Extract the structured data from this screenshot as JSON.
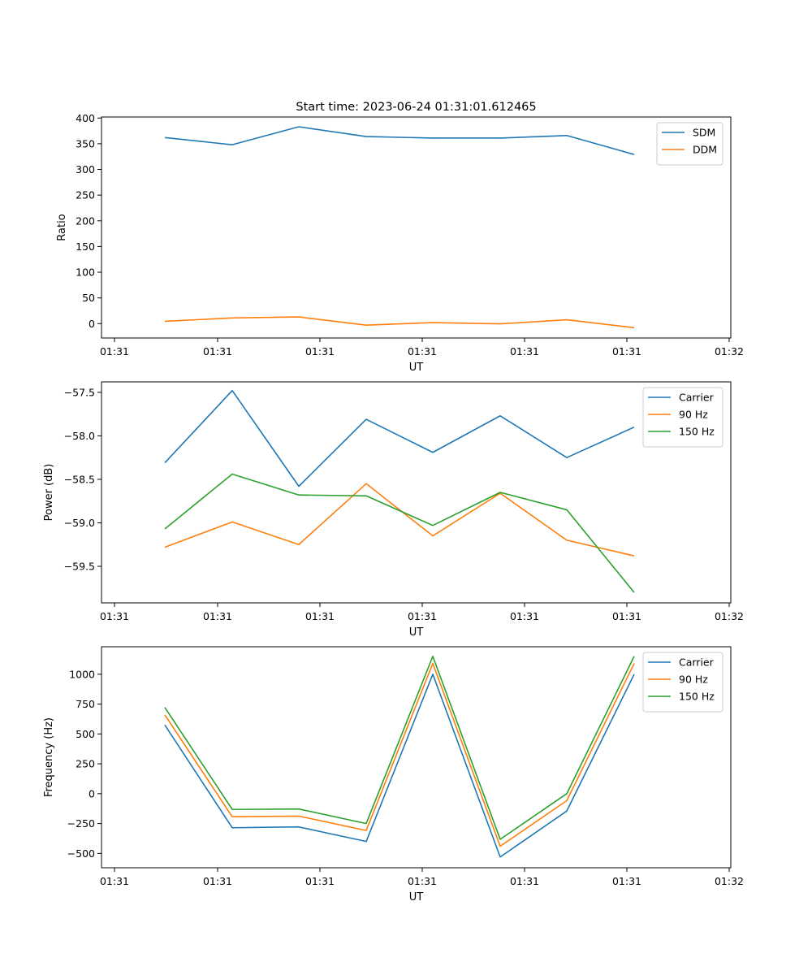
{
  "chart_data": [
    {
      "type": "line",
      "title": "Start time: 2023-06-24 01:31:01.612465",
      "xlabel": "UT",
      "ylabel": "Ratio",
      "x_tick_labels": [
        "01:31",
        "01:31",
        "01:31",
        "01:31",
        "01:31",
        "01:31",
        "01:32"
      ],
      "ylim": [
        -28,
        402
      ],
      "yticks": [
        0,
        50,
        100,
        150,
        200,
        250,
        300,
        350,
        400
      ],
      "yticks_labels": [
        "0",
        "50",
        "100",
        "150",
        "200",
        "250",
        "300",
        "350",
        "400"
      ],
      "legend_position": "upper right",
      "series": [
        {
          "name": "SDM",
          "color": "#1f77b4",
          "values": [
            362,
            348,
            383,
            364,
            361,
            361,
            366,
            329
          ]
        },
        {
          "name": "DDM",
          "color": "#ff7f0e",
          "values": [
            4.5,
            11,
            13,
            -3,
            2,
            -0.5,
            7.5,
            -8
          ]
        }
      ]
    },
    {
      "type": "line",
      "title": "",
      "xlabel": "UT",
      "ylabel": "Power (dB)",
      "x_tick_labels": [
        "01:31",
        "01:31",
        "01:31",
        "01:31",
        "01:31",
        "01:31",
        "01:32"
      ],
      "ylim": [
        -59.92,
        -57.38
      ],
      "yticks": [
        -59.5,
        -59.0,
        -58.5,
        -58.0,
        -57.5
      ],
      "yticks_labels": [
        "−59.5",
        "−59.0",
        "−58.5",
        "−58.0",
        "−57.5"
      ],
      "legend_position": "upper right",
      "series": [
        {
          "name": "Carrier",
          "color": "#1f77b4",
          "values": [
            -58.31,
            -57.48,
            -58.58,
            -57.81,
            -58.19,
            -57.77,
            -58.25,
            -57.9
          ]
        },
        {
          "name": "90 Hz",
          "color": "#ff7f0e",
          "values": [
            -59.28,
            -58.99,
            -59.25,
            -58.55,
            -59.15,
            -58.66,
            -59.2,
            -59.38
          ]
        },
        {
          "name": "150 Hz",
          "color": "#2ca02c",
          "values": [
            -59.07,
            -58.44,
            -58.68,
            -58.69,
            -59.03,
            -58.65,
            -58.85,
            -59.8
          ]
        }
      ]
    },
    {
      "type": "line",
      "title": "",
      "xlabel": "UT",
      "ylabel": "Frequency (Hz)",
      "x_tick_labels": [
        "01:31",
        "01:31",
        "01:31",
        "01:31",
        "01:31",
        "01:31",
        "01:32"
      ],
      "ylim": [
        -620,
        1230
      ],
      "yticks": [
        -500,
        -250,
        0,
        250,
        500,
        750,
        1000
      ],
      "yticks_labels": [
        "−500",
        "−250",
        "0",
        "250",
        "500",
        "750",
        "1000"
      ],
      "legend_position": "upper right",
      "series": [
        {
          "name": "Carrier",
          "color": "#1f77b4",
          "values": [
            575,
            -285,
            -278,
            -400,
            1000,
            -530,
            -145,
            1000
          ]
        },
        {
          "name": "90 Hz",
          "color": "#ff7f0e",
          "values": [
            660,
            -193,
            -188,
            -308,
            1090,
            -440,
            -58,
            1090
          ]
        },
        {
          "name": "150 Hz",
          "color": "#2ca02c",
          "values": [
            722,
            -132,
            -128,
            -250,
            1150,
            -382,
            0,
            1150
          ]
        }
      ]
    }
  ]
}
